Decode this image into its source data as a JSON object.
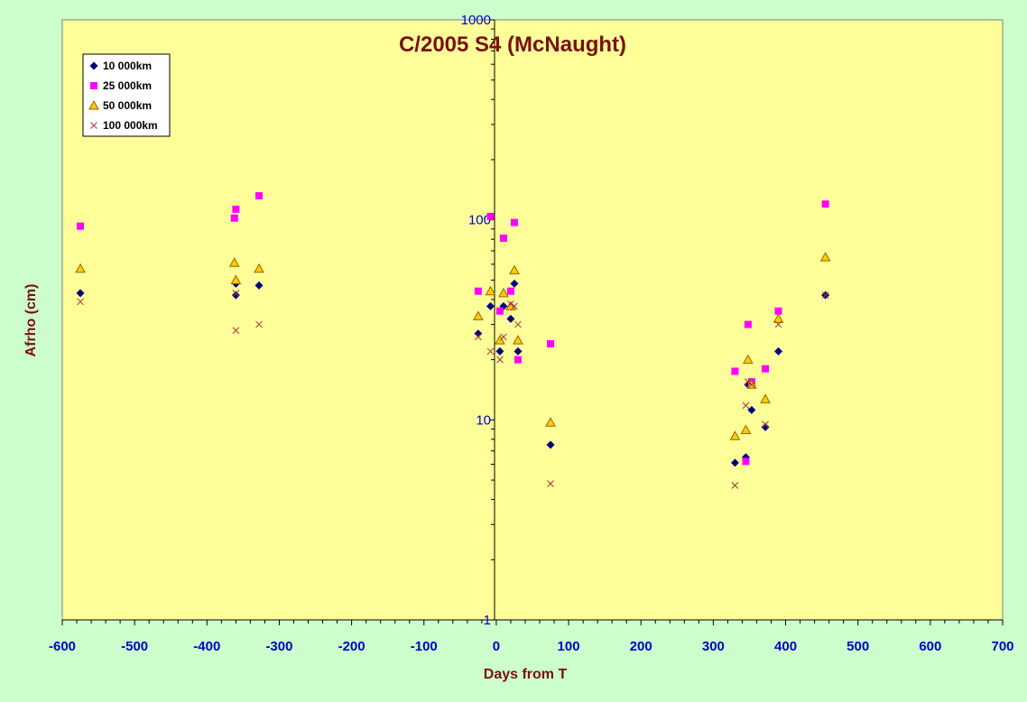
{
  "colors": {
    "outer_background": "#ccffcc",
    "plot_background": "#ffff99",
    "title": "#7a1010",
    "tick_labels": "#0000cc",
    "series_10000": "#000080",
    "series_25000": "#ff00ff",
    "series_50000_fill": "#ffcc00",
    "series_50000_edge": "#996600",
    "series_100000": "#b03040"
  },
  "chart_data": {
    "type": "scatter",
    "title": "C/2005 S4 (McNaught)",
    "xlabel": "Days from T",
    "ylabel": "Afrho (cm)",
    "xlim": [
      -600,
      700
    ],
    "ylim": [
      1,
      1000
    ],
    "y_scale": "log",
    "grid": false,
    "legend_position": "top-left",
    "x_ticks": [
      -600,
      -500,
      -400,
      -300,
      -200,
      -100,
      0,
      100,
      200,
      300,
      400,
      500,
      600,
      700
    ],
    "y_ticks": [
      1,
      10,
      100,
      1000
    ],
    "series": [
      {
        "name": "10 000km",
        "marker": "diamond",
        "points": [
          [
            -575,
            43
          ],
          [
            -360,
            48
          ],
          [
            -360,
            42
          ],
          [
            -328,
            47
          ],
          [
            -25,
            27
          ],
          [
            -8,
            37
          ],
          [
            5,
            22
          ],
          [
            10,
            37
          ],
          [
            20,
            32
          ],
          [
            25,
            48
          ],
          [
            30,
            22
          ],
          [
            75,
            7.5
          ],
          [
            330,
            6.1
          ],
          [
            345,
            6.5
          ],
          [
            348,
            15
          ],
          [
            353,
            11.2
          ],
          [
            372,
            9.2
          ],
          [
            390,
            22
          ],
          [
            455,
            42
          ]
        ]
      },
      {
        "name": "25 000km",
        "marker": "square",
        "points": [
          [
            -575,
            93
          ],
          [
            -362,
            102
          ],
          [
            -360,
            113
          ],
          [
            -328,
            132
          ],
          [
            -25,
            44
          ],
          [
            -8,
            104
          ],
          [
            5,
            35
          ],
          [
            10,
            81
          ],
          [
            20,
            44
          ],
          [
            25,
            97
          ],
          [
            30,
            20
          ],
          [
            75,
            24
          ],
          [
            330,
            17.5
          ],
          [
            345,
            6.2
          ],
          [
            348,
            30
          ],
          [
            353,
            15.5
          ],
          [
            372,
            18
          ],
          [
            390,
            35
          ],
          [
            455,
            120
          ]
        ]
      },
      {
        "name": "50 000km",
        "marker": "triangle",
        "points": [
          [
            -575,
            57
          ],
          [
            -362,
            61
          ],
          [
            -360,
            50
          ],
          [
            -328,
            57
          ],
          [
            -25,
            33
          ],
          [
            -8,
            44
          ],
          [
            5,
            25
          ],
          [
            10,
            43
          ],
          [
            20,
            37
          ],
          [
            25,
            56
          ],
          [
            30,
            25
          ],
          [
            75,
            9.7
          ],
          [
            330,
            8.3
          ],
          [
            345,
            8.9
          ],
          [
            348,
            20
          ],
          [
            353,
            15
          ],
          [
            372,
            12.7
          ],
          [
            390,
            32
          ],
          [
            455,
            65
          ]
        ]
      },
      {
        "name": "100 000km",
        "marker": "x",
        "points": [
          [
            -575,
            39
          ],
          [
            -360,
            28
          ],
          [
            -360,
            43
          ],
          [
            -328,
            30
          ],
          [
            -25,
            26
          ],
          [
            -8,
            22
          ],
          [
            5,
            20
          ],
          [
            10,
            26
          ],
          [
            20,
            38
          ],
          [
            25,
            37
          ],
          [
            30,
            30
          ],
          [
            75,
            4.8
          ],
          [
            330,
            4.7
          ],
          [
            345,
            11.8
          ],
          [
            348,
            15.5
          ],
          [
            353,
            15
          ],
          [
            372,
            9.5
          ],
          [
            390,
            30
          ],
          [
            455,
            42
          ]
        ]
      }
    ]
  }
}
